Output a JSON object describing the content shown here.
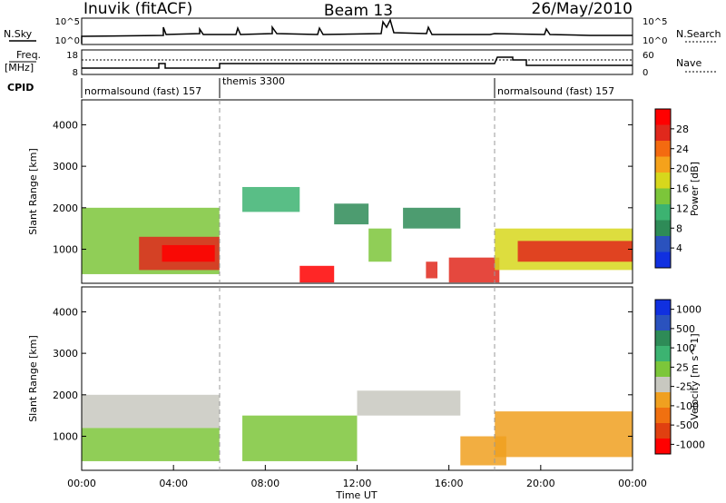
{
  "header": {
    "station": "Inuvik (fitACF)",
    "beam": "Beam 13",
    "date": "26/May/2010"
  },
  "sky_panel": {
    "left_label": "N.Sky",
    "right_label": "N.Search",
    "tick_top_left": "10^5",
    "tick_bottom_left": "10^0",
    "tick_top_right": "10^5",
    "tick_bottom_right": "10^0"
  },
  "freq_panel": {
    "left_label_line1": "Freq.",
    "left_label_line2": "[MHz]",
    "right_label": "Nave",
    "tick_top_left": "18",
    "tick_bottom_left": "8",
    "tick_top_right": "60",
    "tick_bottom_right": "0"
  },
  "cpid_panel": {
    "label": "CPID",
    "segments": [
      "normalsound (fast) 157",
      "themis 3300",
      "normalsound (fast) 157"
    ],
    "boundaries_ut": [
      6,
      18
    ]
  },
  "colors": {
    "power": [
      "#1030e0",
      "#2a52be",
      "#2e8b57",
      "#3cb371",
      "#7cc63a",
      "#d7d71c",
      "#f5a21b",
      "#f46a10",
      "#e0281c",
      "#ff0000"
    ],
    "velocity": [
      "#1030e0",
      "#2a52be",
      "#2e8b57",
      "#3cb371",
      "#7cc63a",
      "#c8c8c0",
      "#f0a020",
      "#f07010",
      "#e04010",
      "#ff0000"
    ]
  },
  "chart_data": [
    {
      "type": "heatmap",
      "title": "",
      "xlabel": "",
      "ylabel": "Slant Range [km]",
      "xlim": [
        0,
        24
      ],
      "ylim": [
        180,
        4600
      ],
      "y_ticks": [
        "1000",
        "2000",
        "3000",
        "4000"
      ],
      "colorbar": {
        "label": "Power [dB]",
        "ticks": [
          "4",
          "8",
          "12",
          "16",
          "20",
          "24",
          "28"
        ],
        "range": [
          0,
          30
        ]
      },
      "regions": [
        {
          "t0": 0.0,
          "t1": 6.0,
          "r0": 400,
          "r1": 2000,
          "value": 14
        },
        {
          "t0": 2.5,
          "t1": 6.0,
          "r0": 500,
          "r1": 1300,
          "value": 24
        },
        {
          "t0": 3.5,
          "t1": 5.8,
          "r0": 700,
          "r1": 1100,
          "value": 28
        },
        {
          "t0": 7.0,
          "t1": 9.5,
          "r0": 1900,
          "r1": 2500,
          "value": 10
        },
        {
          "t0": 9.5,
          "t1": 11.0,
          "r0": 200,
          "r1": 600,
          "value": 27
        },
        {
          "t0": 11.0,
          "t1": 12.5,
          "r0": 1600,
          "r1": 2100,
          "value": 8
        },
        {
          "t0": 12.5,
          "t1": 13.5,
          "r0": 700,
          "r1": 1500,
          "value": 12
        },
        {
          "t0": 14.0,
          "t1": 16.5,
          "r0": 1500,
          "r1": 2000,
          "value": 6
        },
        {
          "t0": 15.0,
          "t1": 15.5,
          "r0": 300,
          "r1": 700,
          "value": 26
        },
        {
          "t0": 16.0,
          "t1": 18.2,
          "r0": 200,
          "r1": 800,
          "value": 26
        },
        {
          "t0": 18.0,
          "t1": 24.0,
          "r0": 500,
          "r1": 1500,
          "value": 16
        },
        {
          "t0": 19.0,
          "t1": 24.0,
          "r0": 700,
          "r1": 1200,
          "value": 24
        }
      ]
    },
    {
      "type": "heatmap",
      "title": "",
      "xlabel": "Time UT",
      "ylabel": "Slant Range [km]",
      "xlim": [
        0,
        24
      ],
      "ylim": [
        180,
        4600
      ],
      "x_ticks": [
        "00:00",
        "04:00",
        "08:00",
        "12:00",
        "16:00",
        "20:00",
        "00:00"
      ],
      "y_ticks": [
        "1000",
        "2000",
        "3000",
        "4000"
      ],
      "colorbar": {
        "label": "Velocity [m s^-1]",
        "ticks": [
          "1000",
          "500",
          "100",
          "25",
          "-25",
          "-100",
          "-500",
          "-1000"
        ],
        "range": [
          -1200,
          1200
        ]
      },
      "regions": [
        {
          "t0": 0.0,
          "t1": 6.0,
          "r0": 1200,
          "r1": 2000,
          "value": 0
        },
        {
          "t0": 0.0,
          "t1": 6.0,
          "r0": 400,
          "r1": 1200,
          "value": 80
        },
        {
          "t0": 7.0,
          "t1": 12.0,
          "r0": 400,
          "r1": 1500,
          "value": 120
        },
        {
          "t0": 12.0,
          "t1": 16.5,
          "r0": 1500,
          "r1": 2100,
          "value": 0
        },
        {
          "t0": 16.5,
          "t1": 18.5,
          "r0": 300,
          "r1": 1000,
          "value": -300
        },
        {
          "t0": 18.0,
          "t1": 24.0,
          "r0": 500,
          "r1": 1600,
          "value": -400
        }
      ]
    }
  ]
}
